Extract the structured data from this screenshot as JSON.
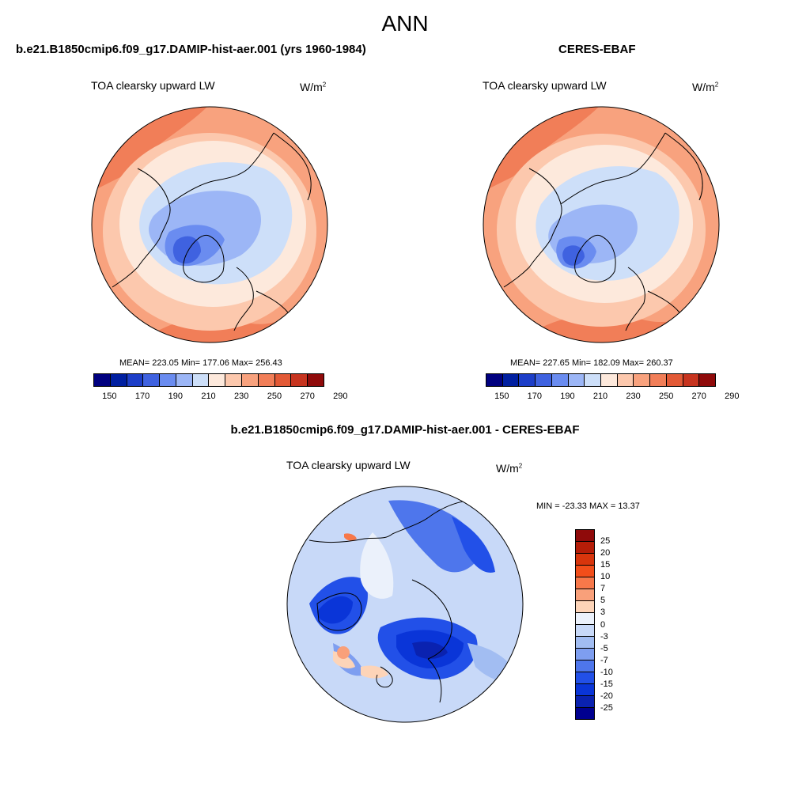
{
  "title": "ANN",
  "panels": [
    {
      "title": "b.e21.B1850cmip6.f09_g17.DAMIP-hist-aer.001 (yrs 1960-1984)",
      "variable": "TOA clearsky upward LW",
      "units_base": "W/m",
      "units_exp": "2",
      "stats_text": "MEAN= 223.05  Min= 177.06  Max= 256.43",
      "mean": 223.05,
      "min": 177.06,
      "max": 256.43,
      "colorbar_ticks": [
        "150",
        "170",
        "190",
        "210",
        "230",
        "250",
        "270",
        "290"
      ]
    },
    {
      "title": "CERES-EBAF",
      "variable": "TOA clearsky upward LW",
      "units_base": "W/m",
      "units_exp": "2",
      "stats_text": "MEAN= 227.65  Min= 182.09  Max= 260.37",
      "mean": 227.65,
      "min": 182.09,
      "max": 260.37,
      "colorbar_ticks": [
        "150",
        "170",
        "190",
        "210",
        "230",
        "250",
        "270",
        "290"
      ]
    },
    {
      "title": "b.e21.B1850cmip6.f09_g17.DAMIP-hist-aer.001 - CERES-EBAF",
      "variable": "TOA clearsky upward LW",
      "units_base": "W/m",
      "units_exp": "2",
      "stats_text": "MIN = -23.33 MAX =  13.37",
      "min": -23.33,
      "max": 13.37,
      "colorbar_ticks": [
        "25",
        "20",
        "15",
        "10",
        "7",
        "5",
        "3",
        "0",
        "-3",
        "-5",
        "-7",
        "-10",
        "-15",
        "-20",
        "-25"
      ]
    }
  ],
  "colors": {
    "abs_scale": [
      "#00007f",
      "#001fa0",
      "#1d3ec8",
      "#3f62e0",
      "#6a8cf0",
      "#9cb6f6",
      "#cddff9",
      "#fde9dc",
      "#fcc8ad",
      "#f8a27e",
      "#f17e58",
      "#e25936",
      "#c7341f",
      "#8f0a0a"
    ],
    "diff_scale": [
      "#8f0a0a",
      "#b51d08",
      "#d8350c",
      "#f24e1a",
      "#f7784a",
      "#f9a07a",
      "#fdd4b8",
      "#ebf1fb",
      "#c8d9f8",
      "#a2bdf2",
      "#7e9ef0",
      "#4e76ec",
      "#2250e8",
      "#0a35d8",
      "#0a22b0",
      "#00008f"
    ]
  }
}
